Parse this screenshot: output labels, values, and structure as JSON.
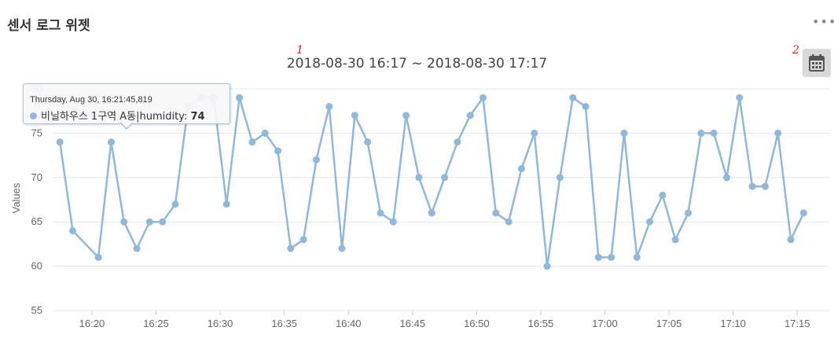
{
  "widget": {
    "title": "센서 로그 위젯",
    "menu_label": "•••"
  },
  "range_title": "2018-08-30 16:17 ~ 2018-08-30 17:17",
  "annotations": [
    "1",
    "2"
  ],
  "calendar_button": {
    "icon": "calendar-icon"
  },
  "tooltip": {
    "date": "Thursday, Aug 30, 16:21:45,819",
    "series_label": "비닐하우스 1구역 A동|humidity:",
    "value": "74"
  },
  "colors": {
    "series": "#8fb8da",
    "grid": "#e6e6e6",
    "axis_text": "#666666"
  },
  "chart_data": {
    "type": "line",
    "ylabel": "Values",
    "ylim": [
      55,
      80
    ],
    "yticks": [
      55,
      60,
      65,
      70,
      75,
      80
    ],
    "xlim": [
      "16:17:00",
      "17:17:30"
    ],
    "xticks": [
      "16:20",
      "16:25",
      "16:30",
      "16:35",
      "16:40",
      "16:45",
      "16:50",
      "16:55",
      "17:00",
      "17:05",
      "17:10",
      "17:15"
    ],
    "grid": true,
    "series": [
      {
        "name": "비닐하우스 1구역 A동|humidity",
        "points": [
          [
            "16:17:30",
            74
          ],
          [
            "16:18:30",
            64
          ],
          [
            "16:20:30",
            61
          ],
          [
            "16:21:30",
            74
          ],
          [
            "16:22:30",
            65
          ],
          [
            "16:23:30",
            62
          ],
          [
            "16:24:30",
            65
          ],
          [
            "16:25:30",
            65
          ],
          [
            "16:26:30",
            67
          ],
          [
            "16:27:30",
            78
          ],
          [
            "16:28:30",
            79
          ],
          [
            "16:29:30",
            79
          ],
          [
            "16:30:30",
            67
          ],
          [
            "16:31:30",
            79
          ],
          [
            "16:32:30",
            74
          ],
          [
            "16:33:30",
            75
          ],
          [
            "16:34:30",
            73
          ],
          [
            "16:35:30",
            62
          ],
          [
            "16:36:30",
            63
          ],
          [
            "16:37:30",
            72
          ],
          [
            "16:38:30",
            78
          ],
          [
            "16:39:30",
            62
          ],
          [
            "16:40:30",
            77
          ],
          [
            "16:41:30",
            74
          ],
          [
            "16:42:30",
            66
          ],
          [
            "16:43:30",
            65
          ],
          [
            "16:44:30",
            77
          ],
          [
            "16:45:30",
            70
          ],
          [
            "16:46:30",
            66
          ],
          [
            "16:47:30",
            70
          ],
          [
            "16:48:30",
            74
          ],
          [
            "16:49:30",
            77
          ],
          [
            "16:50:30",
            79
          ],
          [
            "16:51:30",
            66
          ],
          [
            "16:52:30",
            65
          ],
          [
            "16:53:30",
            71
          ],
          [
            "16:54:30",
            75
          ],
          [
            "16:55:30",
            60
          ],
          [
            "16:56:30",
            70
          ],
          [
            "16:57:30",
            79
          ],
          [
            "16:58:30",
            78
          ],
          [
            "16:59:30",
            61
          ],
          [
            "17:00:30",
            61
          ],
          [
            "17:01:30",
            75
          ],
          [
            "17:02:30",
            61
          ],
          [
            "17:03:30",
            65
          ],
          [
            "17:04:30",
            68
          ],
          [
            "17:05:30",
            63
          ],
          [
            "17:06:30",
            66
          ],
          [
            "17:07:30",
            75
          ],
          [
            "17:08:30",
            75
          ],
          [
            "17:09:30",
            70
          ],
          [
            "17:10:30",
            79
          ],
          [
            "17:11:30",
            69
          ],
          [
            "17:12:30",
            69
          ],
          [
            "17:13:30",
            75
          ],
          [
            "17:14:30",
            63
          ],
          [
            "17:15:30",
            66
          ]
        ]
      }
    ]
  }
}
